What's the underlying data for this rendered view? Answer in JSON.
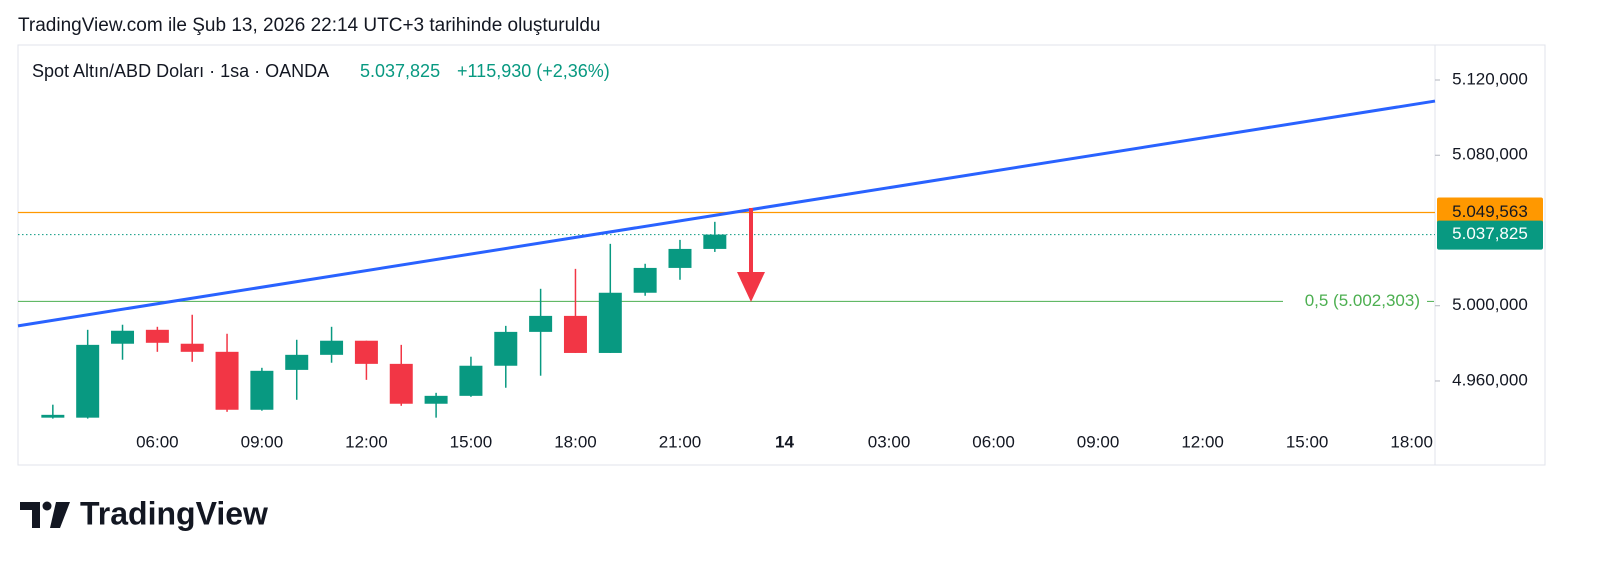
{
  "chart_data": {
    "type": "candlestick",
    "header": "TradingView.com ile Şub 13, 2026 22:14 UTC+3 tarihinde oluşturuldu",
    "symbol": "Spot Altın/ABD Doları · 1sa · OANDA",
    "change": "+115,930 (+2,36%)",
    "brand": "TradingView",
    "x": [
      3,
      4,
      5,
      6,
      7,
      8,
      9,
      10,
      11,
      12,
      13,
      14,
      15,
      16,
      17,
      18,
      19,
      20,
      21,
      22
    ],
    "open": [
      4940500,
      4940500,
      4979800,
      4987200,
      4979800,
      4975500,
      4944700,
      4965900,
      4973900,
      4981400,
      4969100,
      4947900,
      4952100,
      4968100,
      4986100,
      4994600,
      4974900,
      5006900,
      5020100,
      5030200
    ],
    "high": [
      4947400,
      4987200,
      4989900,
      4988800,
      4995200,
      4985100,
      4967000,
      4981900,
      4988800,
      4981400,
      4979200,
      4953700,
      4972900,
      4989300,
      5009000,
      5019600,
      5032900,
      5022300,
      5035000,
      5044600
    ],
    "low": [
      4940000,
      4940000,
      4971300,
      4975500,
      4970200,
      4943600,
      4944200,
      4950000,
      4969700,
      4960600,
      4946800,
      4940500,
      4951600,
      4956400,
      4962800,
      4974900,
      4974900,
      5005300,
      5013800,
      5028600
    ],
    "close": [
      4942000,
      4979200,
      4986700,
      4980300,
      4975500,
      4944700,
      4965400,
      4973900,
      4981400,
      4969100,
      4947900,
      4952100,
      4968100,
      4986100,
      4994600,
      4974900,
      5006900,
      5020100,
      5030200,
      5037825
    ],
    "up_color": "#089981",
    "down_color": "#f23645",
    "xlim": [
      2,
      42.67
    ],
    "ylim": [
      4936600,
      5138600
    ],
    "xticks": [
      {
        "value": 6,
        "label": "06:00"
      },
      {
        "value": 9,
        "label": "09:00"
      },
      {
        "value": 12,
        "label": "12:00"
      },
      {
        "value": 15,
        "label": "15:00"
      },
      {
        "value": 18,
        "label": "18:00"
      },
      {
        "value": 21,
        "label": "21:00"
      },
      {
        "value": 24,
        "label": "14"
      },
      {
        "value": 27,
        "label": "03:00"
      },
      {
        "value": 30,
        "label": "06:00"
      },
      {
        "value": 33,
        "label": "09:00"
      },
      {
        "value": 36,
        "label": "12:00"
      },
      {
        "value": 39,
        "label": "15:00"
      },
      {
        "value": 42,
        "label": "18:00"
      }
    ],
    "yticks": [
      {
        "value": 4960000,
        "label": "4.960,000"
      },
      {
        "value": 5000000,
        "label": "5.000,000"
      },
      {
        "value": 5080000,
        "label": "5.080,000"
      },
      {
        "value": 5120000,
        "label": "5.120,000"
      }
    ],
    "last": {
      "value": 5037825,
      "label": "5.037,825"
    },
    "level": {
      "value": 5049563,
      "label": "5.049,563",
      "color": "#ff9800"
    },
    "fib": {
      "value": 5002303,
      "label": "0,5 (5.002,303)",
      "color": "#4caf50"
    },
    "trendline": {
      "x": [
        2,
        42.67
      ],
      "y": [
        4989300,
        5108800
      ],
      "color": "#2962ff"
    }
  }
}
